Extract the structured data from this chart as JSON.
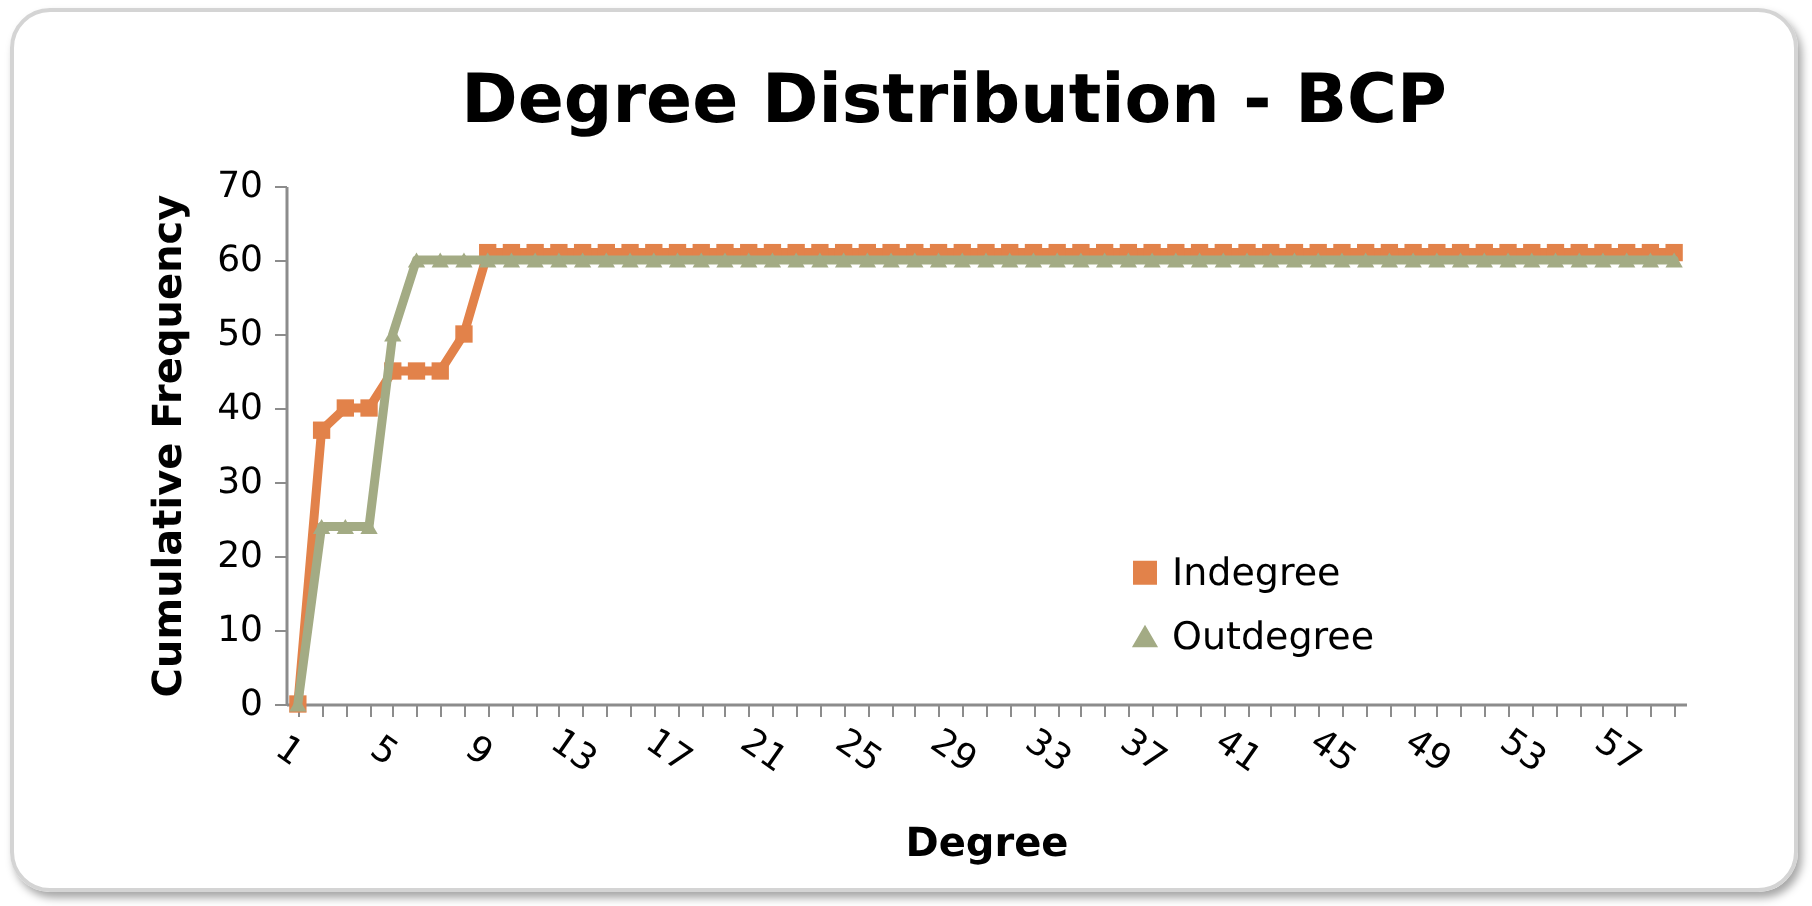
{
  "chart_data": {
    "type": "line",
    "title": "Degree Distribution - BCP",
    "xlabel": "Degree",
    "ylabel": "Cumulative Frequency",
    "categories": [
      "1",
      null,
      null,
      null,
      "5",
      null,
      null,
      null,
      "9",
      null,
      null,
      null,
      "13",
      null,
      null,
      null,
      "17",
      null,
      null,
      null,
      "21",
      null,
      null,
      null,
      "25",
      null,
      null,
      null,
      "29",
      null,
      null,
      null,
      "33",
      null,
      null,
      null,
      "37",
      null,
      null,
      null,
      "41",
      null,
      null,
      null,
      "45",
      null,
      null,
      null,
      "49",
      null,
      null,
      null,
      "53",
      null,
      null,
      null,
      "57",
      null,
      null
    ],
    "series": [
      {
        "name": "Indegree",
        "color": "#e2824a",
        "marker": "square",
        "values": [
          0,
          37,
          40,
          40,
          45,
          45,
          45,
          50,
          61,
          61,
          61,
          61,
          61,
          61,
          61,
          61,
          61,
          61,
          61,
          61,
          61,
          61,
          61,
          61,
          61,
          61,
          61,
          61,
          61,
          61,
          61,
          61,
          61,
          61,
          61,
          61,
          61,
          61,
          61,
          61,
          61,
          61,
          61,
          61,
          61,
          61,
          61,
          61,
          61,
          61,
          61,
          61,
          61,
          61,
          61,
          61,
          61,
          61,
          61
        ]
      },
      {
        "name": "Outdegree",
        "color": "#a3ab84",
        "marker": "triangle",
        "values": [
          0,
          24,
          24,
          24,
          50,
          60,
          60,
          60,
          60,
          60,
          60,
          60,
          60,
          60,
          60,
          60,
          60,
          60,
          60,
          60,
          60,
          60,
          60,
          60,
          60,
          60,
          60,
          60,
          60,
          60,
          60,
          60,
          60,
          60,
          60,
          60,
          60,
          60,
          60,
          60,
          60,
          60,
          60,
          60,
          60,
          60,
          60,
          60,
          60,
          60,
          60,
          60,
          60,
          60,
          60,
          60,
          60,
          60,
          60
        ]
      }
    ],
    "ylim": [
      0,
      70
    ],
    "yticks": [
      0,
      10,
      20,
      30,
      40,
      50,
      60,
      70
    ],
    "legend": "bottom right",
    "grid": false
  }
}
